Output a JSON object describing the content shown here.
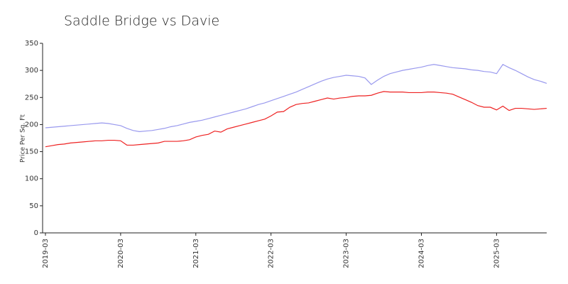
{
  "chart_data": {
    "type": "line",
    "title": "Saddle Bridge vs Davie",
    "y_label": "Price Per Sq. Ft",
    "categories": [
      "2019-03",
      null,
      null,
      null,
      null,
      null,
      null,
      null,
      null,
      null,
      null,
      null,
      "2020-03",
      null,
      null,
      null,
      null,
      null,
      null,
      null,
      null,
      null,
      null,
      null,
      "2021-03",
      null,
      null,
      null,
      null,
      null,
      null,
      null,
      null,
      null,
      null,
      null,
      "2022-03",
      null,
      null,
      null,
      null,
      null,
      null,
      null,
      null,
      null,
      null,
      null,
      "2023-03",
      null,
      null,
      null,
      null,
      null,
      null,
      null,
      null,
      null,
      null,
      null,
      "2024-03",
      null,
      null,
      null,
      null,
      null,
      null,
      null,
      null,
      null,
      null,
      null,
      "2025-03",
      null,
      null,
      null,
      null,
      null,
      null,
      null,
      null
    ],
    "series": [
      {
        "color": "#9999ee",
        "values": [
          194,
          195,
          196,
          197,
          198,
          199,
          200,
          201,
          202,
          203,
          202,
          200,
          198,
          193,
          189,
          187,
          188,
          189,
          191,
          193,
          196,
          198,
          201,
          204,
          206,
          208,
          211,
          214,
          217,
          220,
          223,
          226,
          229,
          233,
          237,
          240,
          244,
          248,
          252,
          256,
          260,
          265,
          270,
          275,
          280,
          284,
          287,
          289,
          291,
          290,
          289,
          286,
          274,
          282,
          289,
          294,
          297,
          300,
          302,
          304,
          306,
          309,
          311,
          309,
          307,
          305,
          304,
          303,
          301,
          300,
          298,
          297,
          294,
          311,
          305,
          300,
          294,
          288,
          283,
          280,
          276
        ]
      },
      {
        "color": "#ee2222",
        "values": [
          159,
          161,
          163,
          164,
          166,
          167,
          168,
          169,
          170,
          170,
          171,
          171,
          170,
          162,
          162,
          163,
          164,
          165,
          166,
          169,
          169,
          169,
          170,
          172,
          177,
          180,
          182,
          188,
          186,
          192,
          195,
          198,
          201,
          204,
          207,
          210,
          216,
          223,
          224,
          232,
          237,
          239,
          240,
          243,
          246,
          249,
          247,
          249,
          250,
          252,
          253,
          253,
          254,
          258,
          261,
          260,
          260,
          260,
          259,
          259,
          259,
          260,
          260,
          259,
          258,
          256,
          251,
          246,
          241,
          235,
          232,
          232,
          227,
          234,
          226,
          230,
          230,
          229,
          228,
          229,
          230
        ]
      }
    ],
    "ylim": [
      0,
      350
    ],
    "yticks": [
      0,
      50,
      100,
      150,
      200,
      250,
      300,
      350
    ]
  }
}
